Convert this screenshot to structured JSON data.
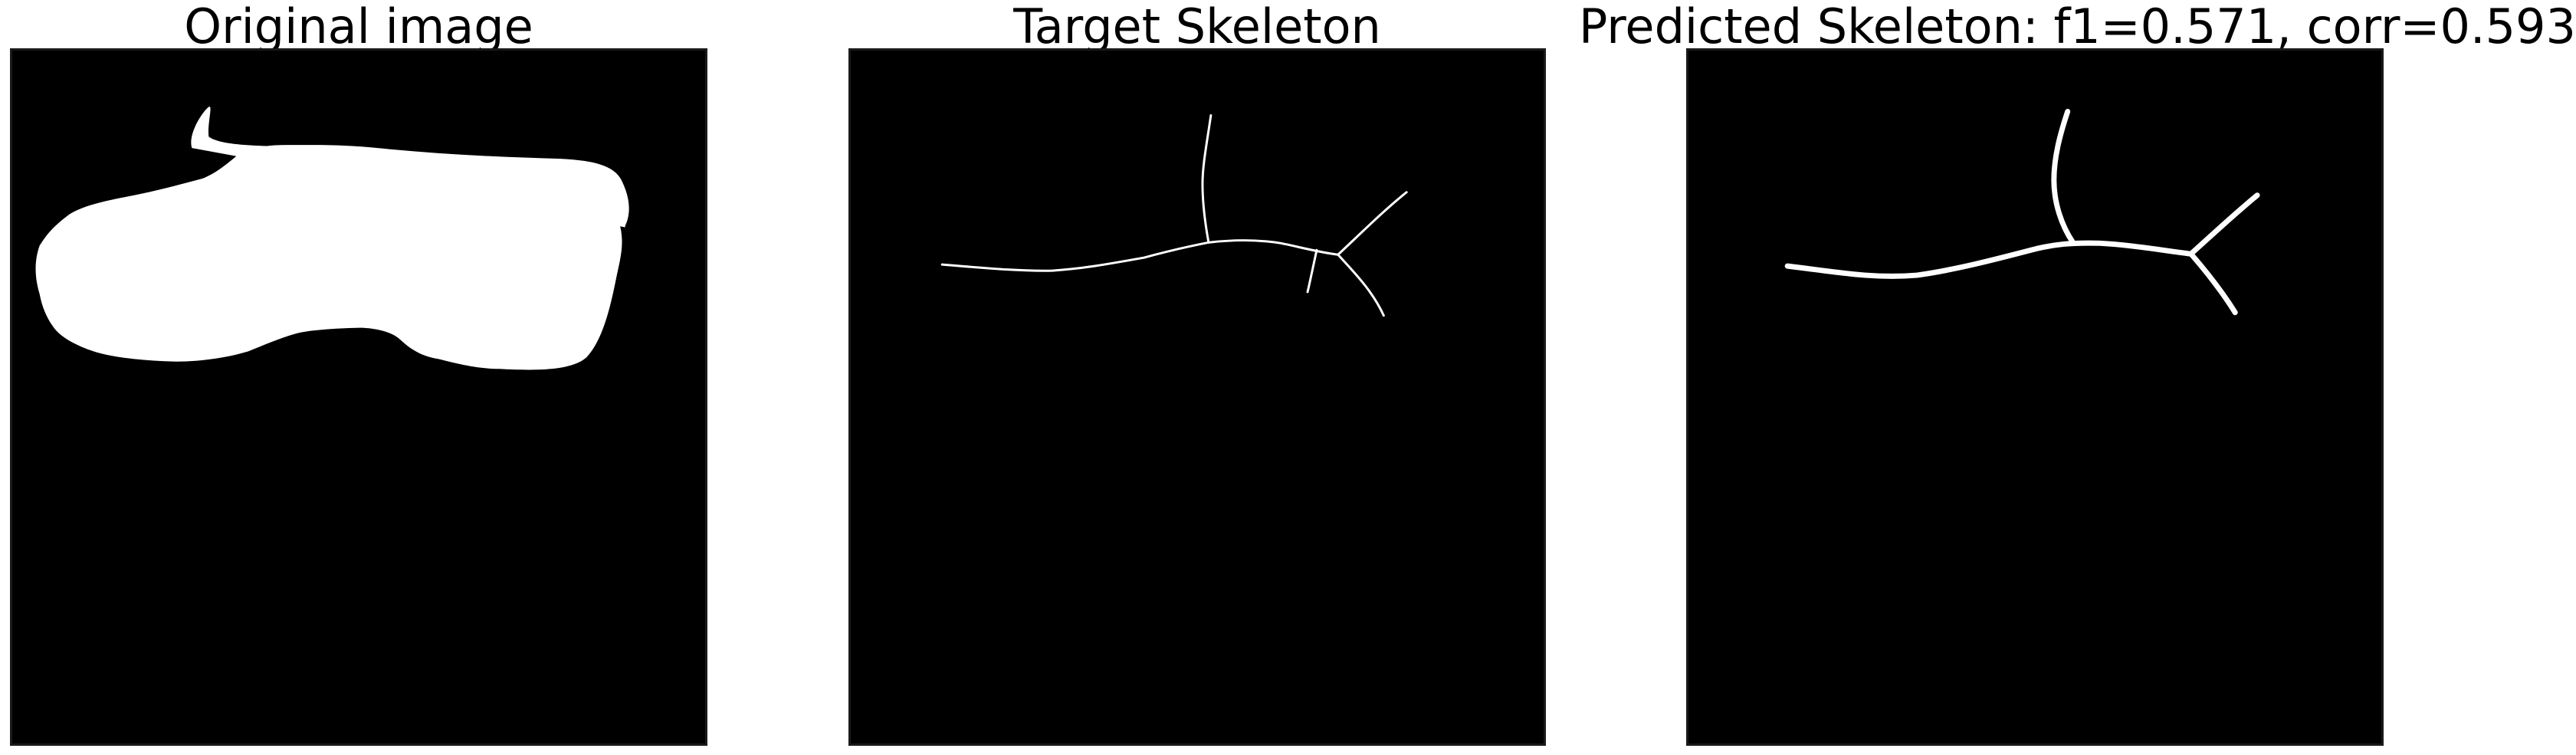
{
  "figure": {
    "panels": [
      {
        "title": "Original image"
      },
      {
        "title": "Target Skeleton"
      },
      {
        "title": "Predicted Skeleton: f1=0.571, corr=0.593"
      }
    ],
    "colors": {
      "background": "#000000",
      "foreground": "#ffffff"
    }
  }
}
